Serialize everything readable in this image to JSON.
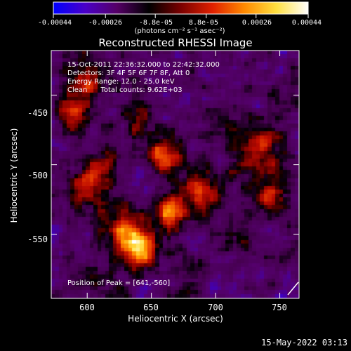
{
  "colorbar": {
    "tick_labels": [
      "-0.00044",
      "-0.00026",
      "-8.8e-05",
      "8.8e-05",
      "0.00026",
      "0.00044"
    ],
    "units_label": "(photons cm⁻² s⁻¹ asec⁻²)",
    "range": [
      -0.00044,
      0.00044
    ],
    "colors": [
      "#0000ff",
      "#4a00c8",
      "#550066",
      "#000000",
      "#7a0000",
      "#e02000",
      "#ff8a00",
      "#ffe040",
      "#ffffff"
    ]
  },
  "title": "Reconstructed RHESSI Image",
  "info_lines": [
    "15-Oct-2011 22:36:32.000 to 22:42:32.000",
    "Detectors: 3F 4F 5F 6F 7F 8F, Att 0",
    "Energy Range: 12.0 - 25.0 keV",
    "Clean      Total counts: 9.62E+03"
  ],
  "peak_text": "Position of Peak = [641,-560]",
  "timestamp": "15-May-2022 03:13",
  "chart_data": {
    "type": "heatmap",
    "title": "Reconstructed RHESSI Image",
    "xlabel": "Heliocentric X (arcsec)",
    "ylabel": "Heliocentric Y (arcsec)",
    "xlim": [
      572,
      765
    ],
    "ylim": [
      -596,
      -418
    ],
    "xticks": [
      600,
      650,
      700,
      750
    ],
    "yticks": [
      -450,
      -500,
      -550
    ],
    "xtick_labels": [
      "600",
      "650",
      "700",
      "750"
    ],
    "ytick_labels": [
      "-450",
      "-500",
      "-550"
    ],
    "peak": [
      641,
      -560
    ],
    "zrange": [
      -0.00044,
      0.00044
    ],
    "blobs": [
      {
        "x": 641,
        "y": -560,
        "amp": 1.0,
        "s": 10
      },
      {
        "x": 665,
        "y": -535,
        "amp": 0.8,
        "s": 8
      },
      {
        "x": 662,
        "y": -495,
        "amp": 0.8,
        "s": 9
      },
      {
        "x": 625,
        "y": -545,
        "amp": 0.55,
        "s": 11
      },
      {
        "x": 690,
        "y": -520,
        "amp": 0.6,
        "s": 12
      },
      {
        "x": 735,
        "y": -490,
        "amp": 0.55,
        "s": 14
      },
      {
        "x": 745,
        "y": -525,
        "amp": 0.45,
        "s": 10
      },
      {
        "x": 600,
        "y": -440,
        "amp": 0.55,
        "s": 12
      },
      {
        "x": 588,
        "y": -465,
        "amp": 0.5,
        "s": 9
      },
      {
        "x": 610,
        "y": -505,
        "amp": 0.55,
        "s": 10
      },
      {
        "x": 595,
        "y": -520,
        "amp": 0.4,
        "s": 8
      },
      {
        "x": 640,
        "y": -470,
        "amp": 0.4,
        "s": 10
      },
      {
        "x": 705,
        "y": -470,
        "amp": 0.3,
        "s": 9
      },
      {
        "x": 755,
        "y": -450,
        "amp": 0.25,
        "s": 8
      },
      {
        "x": 720,
        "y": -555,
        "amp": 0.3,
        "s": 10
      },
      {
        "x": 605,
        "y": -585,
        "amp": 0.25,
        "s": 10
      },
      {
        "x": 680,
        "y": -580,
        "amp": 0.2,
        "s": 10
      }
    ]
  }
}
